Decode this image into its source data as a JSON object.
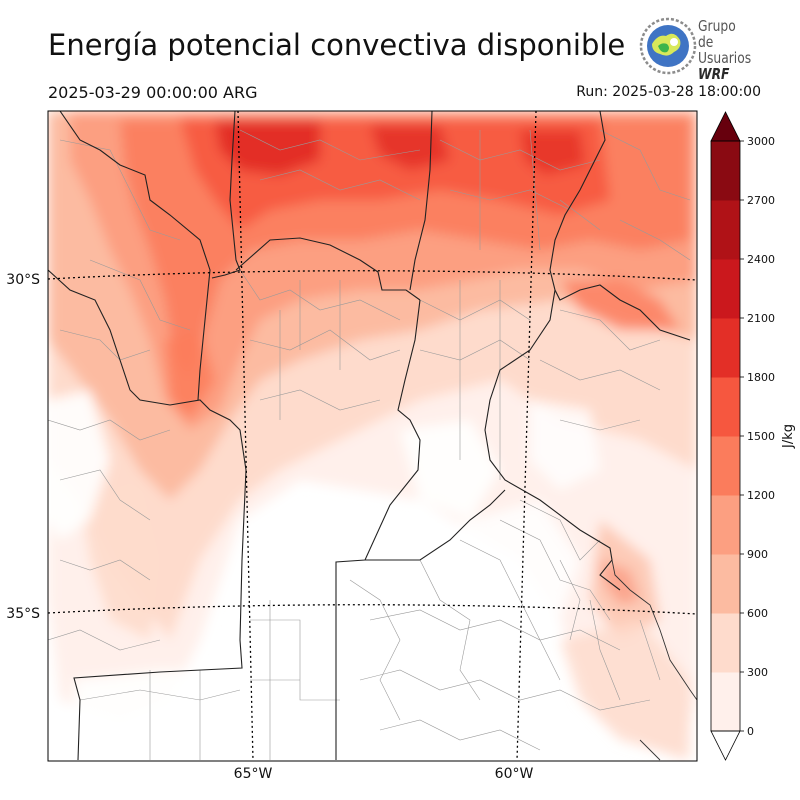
{
  "header": {
    "title": "Energía potencial convectiva disponible",
    "valid_time": "2025-03-29 00:00:00 ARG",
    "run_time": "Run: 2025-03-28 18:00:00"
  },
  "logo": {
    "line1": "Grupo de",
    "line2": "Usuarios",
    "line3": "WRF"
  },
  "map": {
    "lat_labels": [
      "30°S",
      "35°S"
    ],
    "lon_labels": [
      "65°W",
      "60°W"
    ]
  },
  "colorbar": {
    "label": "J/kg",
    "ticks": [
      "0",
      "300",
      "600",
      "900",
      "1200",
      "1500",
      "1800",
      "2100",
      "2400",
      "2700",
      "3000"
    ],
    "colors": [
      "#fff0eb",
      "#fedbcc",
      "#fcbba1",
      "#fc9f81",
      "#fb7c5c",
      "#f6573f",
      "#e32f27",
      "#cb181d",
      "#b01217",
      "#8a0a12"
    ],
    "extend_max_color": "#67000d",
    "extend_min_color": "#ffffff"
  }
}
